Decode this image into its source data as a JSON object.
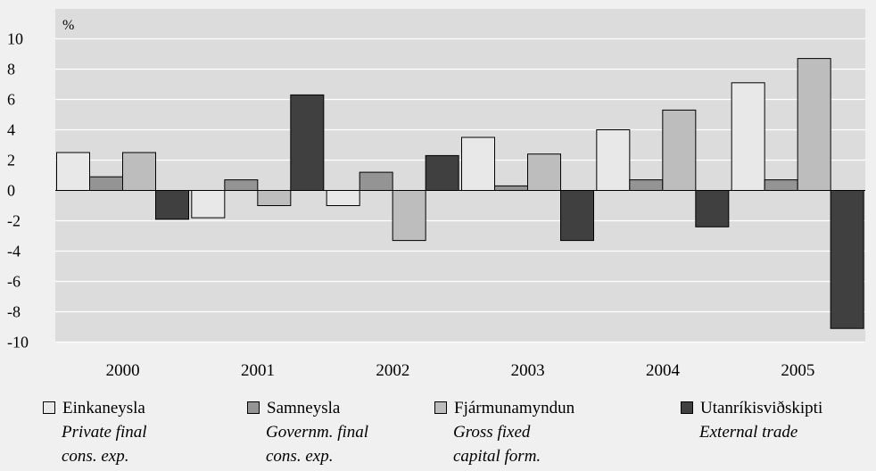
{
  "chart_data": {
    "type": "bar",
    "y_unit_label": "%",
    "categories": [
      "2000",
      "2001",
      "2002",
      "2003",
      "2004",
      "2005"
    ],
    "ylim": [
      -10,
      10
    ],
    "y_ticks": [
      "10",
      "8",
      "6",
      "4",
      "2",
      "0",
      "-2",
      "-4",
      "-6",
      "-8",
      "-10"
    ],
    "grid": true,
    "legend_position": "bottom",
    "series": [
      {
        "name": "Einkaneysla",
        "subtitle_line1": "Private final",
        "subtitle_line2": "cons. exp.",
        "color": "#e8e8e8",
        "values": [
          2.5,
          -1.8,
          -1.0,
          3.5,
          4.0,
          7.1
        ]
      },
      {
        "name": "Samneysla",
        "subtitle_line1": "Governm. final",
        "subtitle_line2": "cons. exp.",
        "color": "#949494",
        "values": [
          0.9,
          0.7,
          1.2,
          0.3,
          0.7,
          0.7
        ]
      },
      {
        "name": "Fjármunamyndun",
        "subtitle_line1": "Gross fixed",
        "subtitle_line2": "capital form.",
        "color": "#bdbdbd",
        "values": [
          2.5,
          -1.0,
          -3.3,
          2.4,
          5.3,
          8.7
        ]
      },
      {
        "name": "Utanríkisviðskipti",
        "subtitle_line1": "External trade",
        "subtitle_line2": "",
        "color": "#404040",
        "values": [
          -1.9,
          6.3,
          2.3,
          -3.3,
          -2.4,
          -9.1
        ]
      }
    ]
  }
}
